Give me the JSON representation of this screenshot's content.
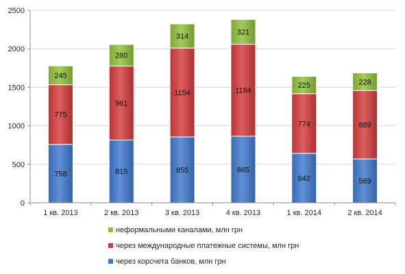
{
  "chart_data": {
    "type": "bar",
    "stacked": true,
    "categories": [
      "1 кв. 2013",
      "2 кв. 2013",
      "3 кв. 2013",
      "4 кв. 2013",
      "1 кв. 2014",
      "2 кв. 2014"
    ],
    "series": [
      {
        "name": "через корсчета банков, млн грн",
        "values": [
          758,
          815,
          855,
          865,
          642,
          569
        ],
        "color": "#3e78cc"
      },
      {
        "name": "через международные платежные системы, млн грн",
        "values": [
          775,
          961,
          1154,
          1194,
          774,
          889
        ],
        "color": "#d43b3b"
      },
      {
        "name": "неформальными каналами, млн грн",
        "values": [
          245,
          280,
          314,
          321,
          225,
          228
        ],
        "color": "#8fbf3a"
      }
    ],
    "yticks": [
      "0",
      "500",
      "1000",
      "1500",
      "2000",
      "2500"
    ],
    "ylim": [
      0,
      2500
    ],
    "grid": true,
    "legend": "bottom",
    "legend_order": [
      2,
      1,
      0
    ]
  }
}
